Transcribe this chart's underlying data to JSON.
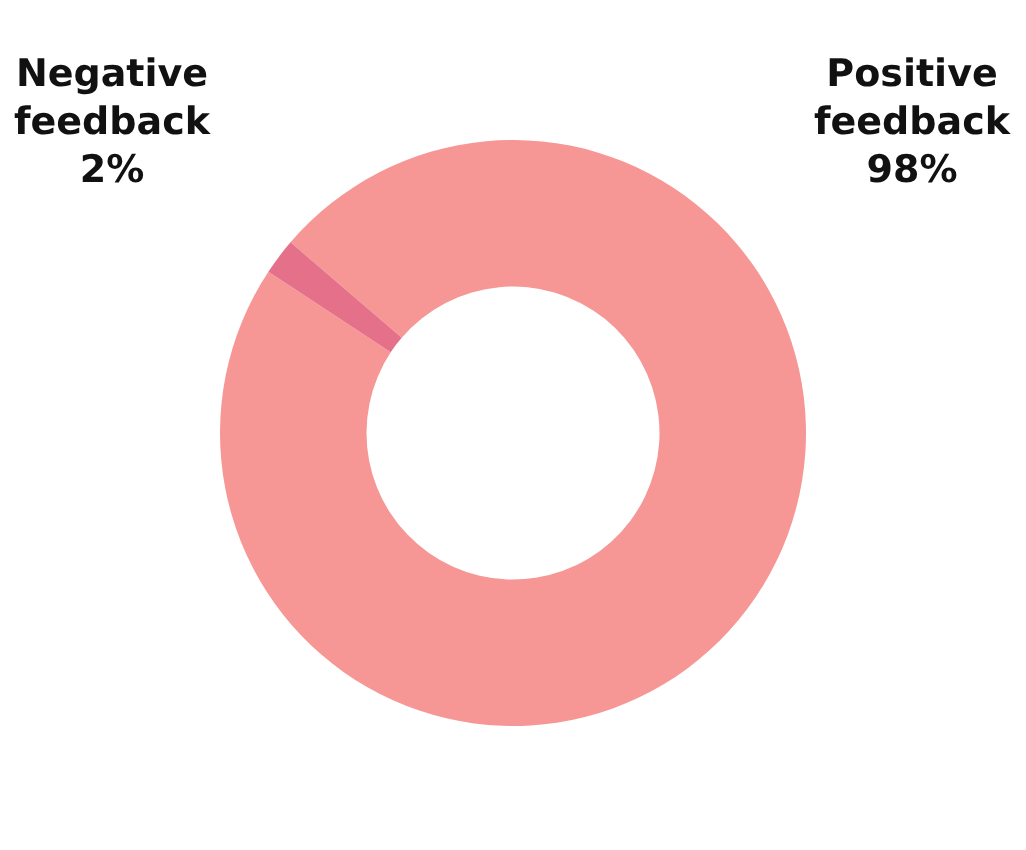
{
  "chart_data": {
    "type": "donut",
    "categories": [
      "Positive feedback",
      "Negative feedback"
    ],
    "values": [
      98,
      2
    ],
    "colors": [
      "#f69795",
      "#e4708a"
    ],
    "value_labels": [
      "98%",
      "2%"
    ],
    "legend": false
  }
}
